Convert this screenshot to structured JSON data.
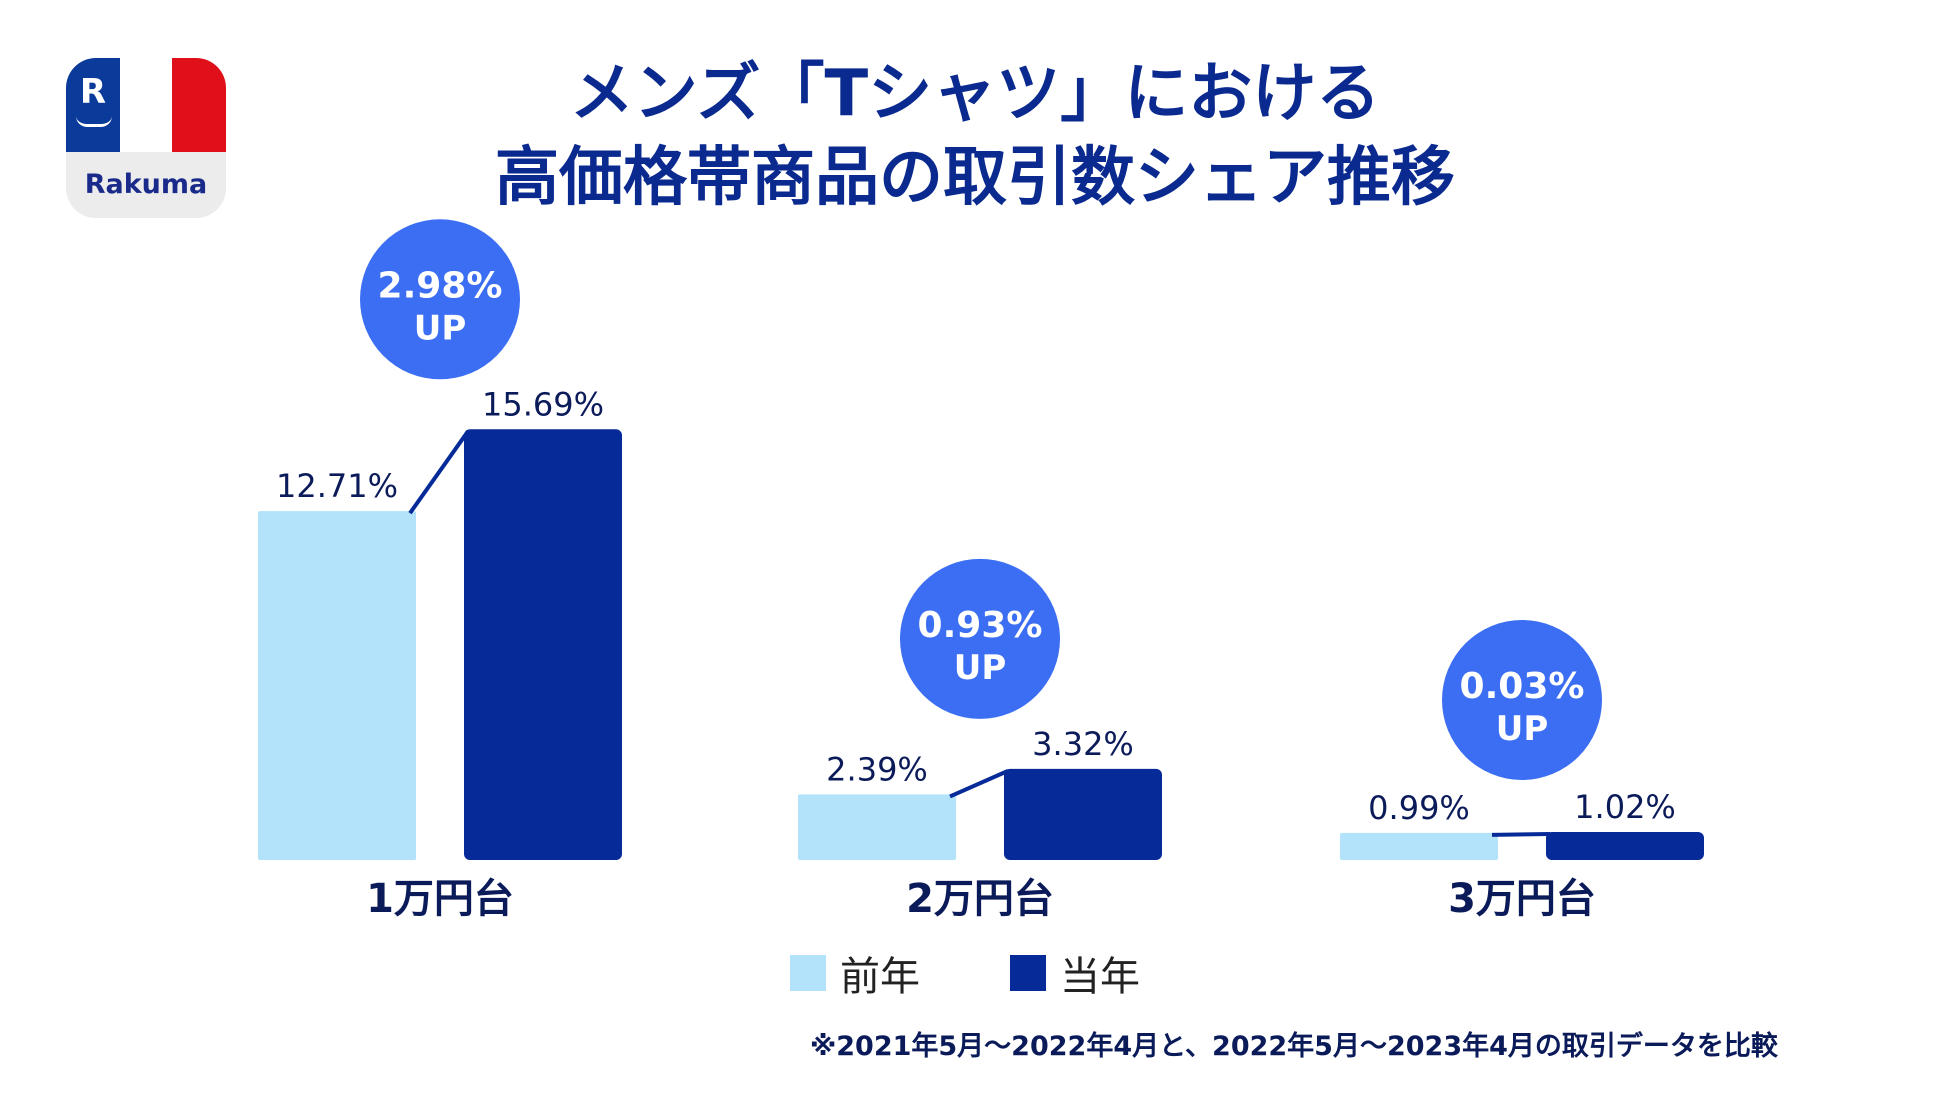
{
  "logo": {
    "brand": "Rakuma",
    "mark": "R",
    "flag_colors": [
      "#0a3a9a",
      "#ffffff",
      "#e0101a"
    ]
  },
  "title": {
    "line1": "メンズ「Tシャツ」における",
    "line2": "高価格帯商品の取引数シェア推移"
  },
  "colors": {
    "prev": "#b3e3fb",
    "curr": "#062a97",
    "badge": "#3b6ef2",
    "text": "#0b2a8f"
  },
  "chart_data": {
    "type": "bar",
    "title": "メンズ「Tシャツ」における高価格帯商品の取引数シェア推移",
    "categories": [
      "1万円台",
      "2万円台",
      "3万円台"
    ],
    "series": [
      {
        "name": "前年",
        "values": [
          12.71,
          2.39,
          0.99
        ],
        "labels": [
          "12.71%",
          "2.39%",
          "0.99%"
        ]
      },
      {
        "name": "当年",
        "values": [
          15.69,
          3.32,
          1.02
        ],
        "labels": [
          "15.69%",
          "3.32%",
          "1.02%"
        ]
      }
    ],
    "annotations": [
      {
        "value": "2.98%",
        "sub": "UP"
      },
      {
        "value": "0.93%",
        "sub": "UP"
      },
      {
        "value": "0.03%",
        "sub": "UP"
      }
    ],
    "ylim": [
      0,
      16
    ],
    "xlabel": "",
    "ylabel": "",
    "legend": "bottom"
  },
  "legend": {
    "prev": "前年",
    "curr": "当年"
  },
  "footnote": "※2021年5月〜2022年4月と、2022年5月〜2023年4月の取引データを比較"
}
